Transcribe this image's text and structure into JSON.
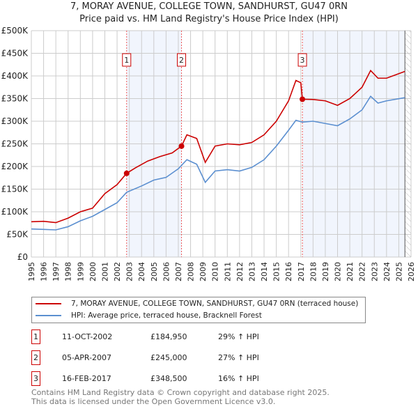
{
  "chart_data": {
    "type": "line",
    "title": "7, MORAY AVENUE, COLLEGE TOWN, SANDHURST, GU47 0RN",
    "subtitle": "Price paid vs. HM Land Registry's House Price Index (HPI)",
    "xlim": [
      1995,
      2026
    ],
    "ylim": [
      0,
      500000
    ],
    "x_ticks": [
      "1995",
      "1996",
      "1997",
      "1998",
      "1999",
      "2000",
      "2001",
      "2002",
      "2003",
      "2004",
      "2005",
      "2006",
      "2007",
      "2008",
      "2009",
      "2010",
      "2011",
      "2012",
      "2013",
      "2014",
      "2015",
      "2016",
      "2017",
      "2018",
      "2019",
      "2020",
      "2021",
      "2022",
      "2023",
      "2024",
      "2025",
      "2026"
    ],
    "y_ticks": [
      "£0",
      "£50K",
      "£100K",
      "£150K",
      "£200K",
      "£250K",
      "£300K",
      "£350K",
      "£400K",
      "£450K",
      "£500K"
    ],
    "grid": true,
    "series": [
      {
        "name": "7, MORAY AVENUE, COLLEGE TOWN, SANDHURST, GU47 0RN (terraced house)",
        "color": "#cc0000",
        "x": [
          1995,
          1996,
          1997,
          1998,
          1999,
          2000,
          2001,
          2002,
          2002.78,
          2003.5,
          2004.5,
          2005.5,
          2006.5,
          2007.26,
          2007.7,
          2008.5,
          2009.2,
          2010,
          2011,
          2012,
          2013,
          2014,
          2015,
          2016,
          2016.6,
          2017.0,
          2017.13,
          2018,
          2019,
          2020,
          2021,
          2022,
          2022.7,
          2023.3,
          2024,
          2025.5
        ],
        "y": [
          78000,
          79000,
          76000,
          86000,
          100000,
          108000,
          140000,
          160000,
          184950,
          197000,
          212000,
          222000,
          230000,
          245000,
          270000,
          262000,
          209000,
          245000,
          250000,
          248000,
          253000,
          270000,
          300000,
          345000,
          390000,
          385000,
          348500,
          348000,
          345000,
          335000,
          350000,
          375000,
          412000,
          395000,
          395000,
          410000
        ]
      },
      {
        "name": "HPI: Average price, terraced house, Bracknell Forest",
        "color": "#5b8fd0",
        "x": [
          1995,
          1996,
          1997,
          1998,
          1999,
          2000,
          2001,
          2002,
          2002.78,
          2004,
          2005,
          2006,
          2007,
          2007.7,
          2008.5,
          2009.2,
          2010,
          2011,
          2012,
          2013,
          2014,
          2015,
          2016,
          2016.6,
          2017.13,
          2018,
          2019,
          2020,
          2021,
          2022,
          2022.7,
          2023.3,
          2024,
          2025.5
        ],
        "y": [
          62000,
          61000,
          60000,
          67000,
          80000,
          90000,
          105000,
          120000,
          143000,
          157000,
          170000,
          176000,
          195000,
          215000,
          205000,
          165000,
          190000,
          193000,
          190000,
          198000,
          215000,
          245000,
          280000,
          302000,
          298000,
          300000,
          295000,
          290000,
          305000,
          325000,
          355000,
          340000,
          345000,
          352000
        ]
      }
    ],
    "sales": [
      {
        "label": "1",
        "x": 2002.78,
        "y": 184950,
        "date": "11-OCT-2002",
        "price": "£184,950",
        "hpi": "29% ↑ HPI"
      },
      {
        "label": "2",
        "x": 2007.26,
        "y": 245000,
        "date": "05-APR-2007",
        "price": "£245,000",
        "hpi": "27% ↑ HPI"
      },
      {
        "label": "3",
        "x": 2017.13,
        "y": 348500,
        "date": "16-FEB-2017",
        "price": "£348,500",
        "hpi": "16% ↑ HPI"
      }
    ],
    "shaded_periods": [
      [
        2002.78,
        2007.26
      ],
      [
        2017.13,
        2025.5
      ]
    ],
    "hatched_from": 2025.5
  },
  "footer": {
    "line1": "Contains HM Land Registry data © Crown copyright and database right 2025.",
    "line2": "This data is licensed under the Open Government Licence v3.0."
  }
}
